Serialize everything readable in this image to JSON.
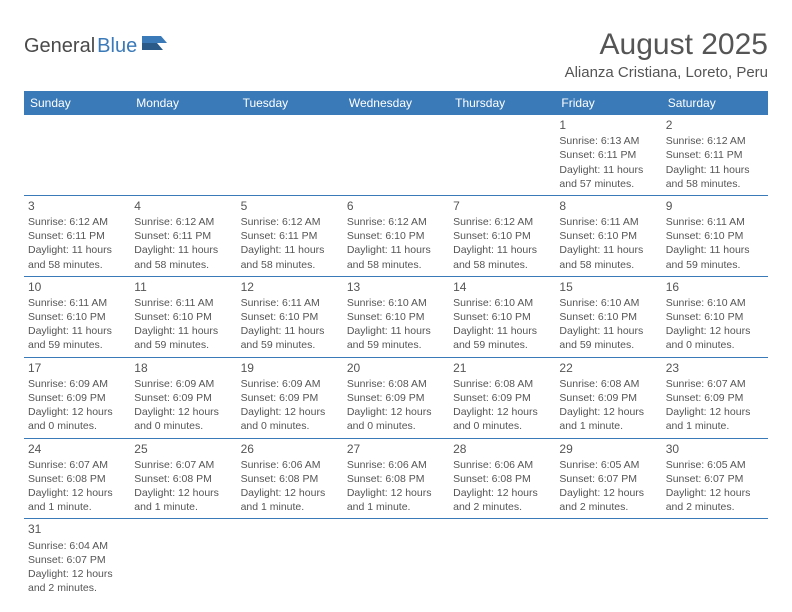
{
  "logo": {
    "part1": "General",
    "part2": "Blue"
  },
  "title": "August 2025",
  "location": "Alianza Cristiana, Loreto, Peru",
  "colors": {
    "header_bg": "#3a7ab8",
    "header_fg": "#ffffff",
    "border": "#3a7ab8",
    "text": "#555555"
  },
  "weekdays": [
    "Sunday",
    "Monday",
    "Tuesday",
    "Wednesday",
    "Thursday",
    "Friday",
    "Saturday"
  ],
  "weeks": [
    [
      null,
      null,
      null,
      null,
      null,
      {
        "n": "1",
        "sr": "Sunrise: 6:13 AM",
        "ss": "Sunset: 6:11 PM",
        "dl1": "Daylight: 11 hours",
        "dl2": "and 57 minutes."
      },
      {
        "n": "2",
        "sr": "Sunrise: 6:12 AM",
        "ss": "Sunset: 6:11 PM",
        "dl1": "Daylight: 11 hours",
        "dl2": "and 58 minutes."
      }
    ],
    [
      {
        "n": "3",
        "sr": "Sunrise: 6:12 AM",
        "ss": "Sunset: 6:11 PM",
        "dl1": "Daylight: 11 hours",
        "dl2": "and 58 minutes."
      },
      {
        "n": "4",
        "sr": "Sunrise: 6:12 AM",
        "ss": "Sunset: 6:11 PM",
        "dl1": "Daylight: 11 hours",
        "dl2": "and 58 minutes."
      },
      {
        "n": "5",
        "sr": "Sunrise: 6:12 AM",
        "ss": "Sunset: 6:11 PM",
        "dl1": "Daylight: 11 hours",
        "dl2": "and 58 minutes."
      },
      {
        "n": "6",
        "sr": "Sunrise: 6:12 AM",
        "ss": "Sunset: 6:10 PM",
        "dl1": "Daylight: 11 hours",
        "dl2": "and 58 minutes."
      },
      {
        "n": "7",
        "sr": "Sunrise: 6:12 AM",
        "ss": "Sunset: 6:10 PM",
        "dl1": "Daylight: 11 hours",
        "dl2": "and 58 minutes."
      },
      {
        "n": "8",
        "sr": "Sunrise: 6:11 AM",
        "ss": "Sunset: 6:10 PM",
        "dl1": "Daylight: 11 hours",
        "dl2": "and 58 minutes."
      },
      {
        "n": "9",
        "sr": "Sunrise: 6:11 AM",
        "ss": "Sunset: 6:10 PM",
        "dl1": "Daylight: 11 hours",
        "dl2": "and 59 minutes."
      }
    ],
    [
      {
        "n": "10",
        "sr": "Sunrise: 6:11 AM",
        "ss": "Sunset: 6:10 PM",
        "dl1": "Daylight: 11 hours",
        "dl2": "and 59 minutes."
      },
      {
        "n": "11",
        "sr": "Sunrise: 6:11 AM",
        "ss": "Sunset: 6:10 PM",
        "dl1": "Daylight: 11 hours",
        "dl2": "and 59 minutes."
      },
      {
        "n": "12",
        "sr": "Sunrise: 6:11 AM",
        "ss": "Sunset: 6:10 PM",
        "dl1": "Daylight: 11 hours",
        "dl2": "and 59 minutes."
      },
      {
        "n": "13",
        "sr": "Sunrise: 6:10 AM",
        "ss": "Sunset: 6:10 PM",
        "dl1": "Daylight: 11 hours",
        "dl2": "and 59 minutes."
      },
      {
        "n": "14",
        "sr": "Sunrise: 6:10 AM",
        "ss": "Sunset: 6:10 PM",
        "dl1": "Daylight: 11 hours",
        "dl2": "and 59 minutes."
      },
      {
        "n": "15",
        "sr": "Sunrise: 6:10 AM",
        "ss": "Sunset: 6:10 PM",
        "dl1": "Daylight: 11 hours",
        "dl2": "and 59 minutes."
      },
      {
        "n": "16",
        "sr": "Sunrise: 6:10 AM",
        "ss": "Sunset: 6:10 PM",
        "dl1": "Daylight: 12 hours",
        "dl2": "and 0 minutes."
      }
    ],
    [
      {
        "n": "17",
        "sr": "Sunrise: 6:09 AM",
        "ss": "Sunset: 6:09 PM",
        "dl1": "Daylight: 12 hours",
        "dl2": "and 0 minutes."
      },
      {
        "n": "18",
        "sr": "Sunrise: 6:09 AM",
        "ss": "Sunset: 6:09 PM",
        "dl1": "Daylight: 12 hours",
        "dl2": "and 0 minutes."
      },
      {
        "n": "19",
        "sr": "Sunrise: 6:09 AM",
        "ss": "Sunset: 6:09 PM",
        "dl1": "Daylight: 12 hours",
        "dl2": "and 0 minutes."
      },
      {
        "n": "20",
        "sr": "Sunrise: 6:08 AM",
        "ss": "Sunset: 6:09 PM",
        "dl1": "Daylight: 12 hours",
        "dl2": "and 0 minutes."
      },
      {
        "n": "21",
        "sr": "Sunrise: 6:08 AM",
        "ss": "Sunset: 6:09 PM",
        "dl1": "Daylight: 12 hours",
        "dl2": "and 0 minutes."
      },
      {
        "n": "22",
        "sr": "Sunrise: 6:08 AM",
        "ss": "Sunset: 6:09 PM",
        "dl1": "Daylight: 12 hours",
        "dl2": "and 1 minute."
      },
      {
        "n": "23",
        "sr": "Sunrise: 6:07 AM",
        "ss": "Sunset: 6:09 PM",
        "dl1": "Daylight: 12 hours",
        "dl2": "and 1 minute."
      }
    ],
    [
      {
        "n": "24",
        "sr": "Sunrise: 6:07 AM",
        "ss": "Sunset: 6:08 PM",
        "dl1": "Daylight: 12 hours",
        "dl2": "and 1 minute."
      },
      {
        "n": "25",
        "sr": "Sunrise: 6:07 AM",
        "ss": "Sunset: 6:08 PM",
        "dl1": "Daylight: 12 hours",
        "dl2": "and 1 minute."
      },
      {
        "n": "26",
        "sr": "Sunrise: 6:06 AM",
        "ss": "Sunset: 6:08 PM",
        "dl1": "Daylight: 12 hours",
        "dl2": "and 1 minute."
      },
      {
        "n": "27",
        "sr": "Sunrise: 6:06 AM",
        "ss": "Sunset: 6:08 PM",
        "dl1": "Daylight: 12 hours",
        "dl2": "and 1 minute."
      },
      {
        "n": "28",
        "sr": "Sunrise: 6:06 AM",
        "ss": "Sunset: 6:08 PM",
        "dl1": "Daylight: 12 hours",
        "dl2": "and 2 minutes."
      },
      {
        "n": "29",
        "sr": "Sunrise: 6:05 AM",
        "ss": "Sunset: 6:07 PM",
        "dl1": "Daylight: 12 hours",
        "dl2": "and 2 minutes."
      },
      {
        "n": "30",
        "sr": "Sunrise: 6:05 AM",
        "ss": "Sunset: 6:07 PM",
        "dl1": "Daylight: 12 hours",
        "dl2": "and 2 minutes."
      }
    ],
    [
      {
        "n": "31",
        "sr": "Sunrise: 6:04 AM",
        "ss": "Sunset: 6:07 PM",
        "dl1": "Daylight: 12 hours",
        "dl2": "and 2 minutes."
      },
      null,
      null,
      null,
      null,
      null,
      null
    ]
  ]
}
